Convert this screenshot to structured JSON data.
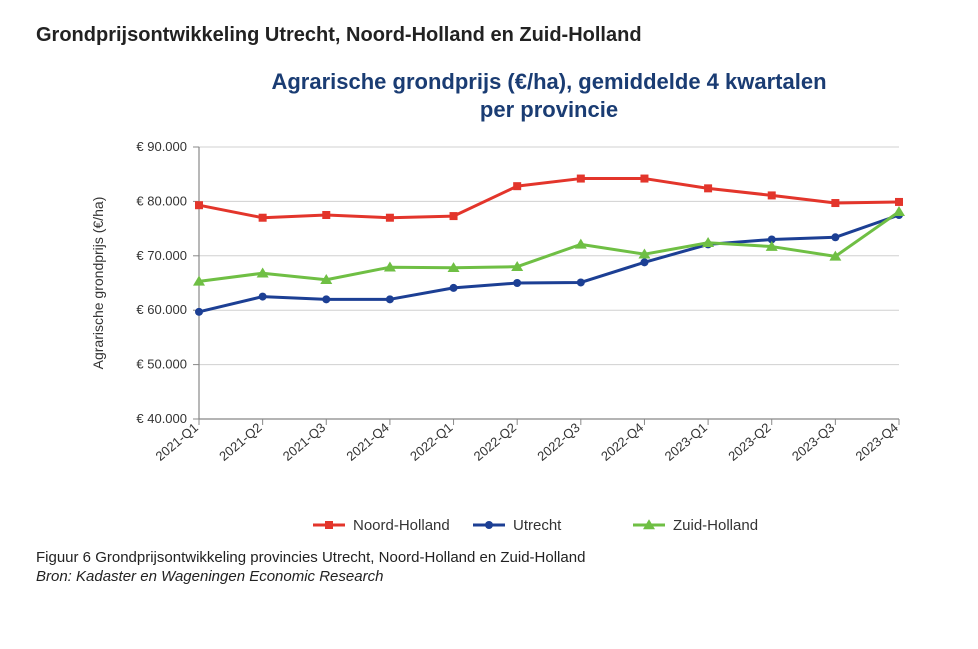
{
  "heading": "Grondprijsontwikkeling Utrecht, Noord-Holland en Zuid-Holland",
  "caption": "Figuur 6 Grondprijsontwikkeling provincies Utrecht, Noord-Holland en Zuid-Holland",
  "source": "Bron: Kadaster en Wageningen Economic Research",
  "chart": {
    "type": "line",
    "title": "Agrarische grondprijs (€/ha), gemiddelde 4 kwartalen, per provincie",
    "title_fontsize": 22,
    "title_color": "#1a3c73",
    "title_weight": "bold",
    "categories": [
      "2021-Q1",
      "2021-Q2",
      "2021-Q3",
      "2021-Q4",
      "2022-Q1",
      "2022-Q2",
      "2022-Q3",
      "2022-Q4",
      "2023-Q1",
      "2023-Q2",
      "2023-Q3",
      "2023-Q4"
    ],
    "ylabel": "Agrarische grondprijs (€/ha)",
    "ylabel_fontsize": 14,
    "ylim": [
      40000,
      90000
    ],
    "ytick_step": 10000,
    "ytick_labels": [
      "€ 40.000",
      "€ 50.000",
      "€ 60.000",
      "€ 70.000",
      "€ 80.000",
      "€ 90.000"
    ],
    "ytick_values": [
      40000,
      50000,
      60000,
      70000,
      80000,
      90000
    ],
    "series": [
      {
        "name": "Noord-Holland",
        "color": "#e3352b",
        "marker": "square",
        "marker_size": 8,
        "line_width": 3,
        "values": [
          79300,
          77000,
          77500,
          77000,
          77300,
          82800,
          84200,
          84200,
          82400,
          81100,
          79700,
          79900
        ]
      },
      {
        "name": "Utrecht",
        "color": "#1c3f94",
        "marker": "circle",
        "marker_size": 8,
        "line_width": 3,
        "values": [
          59700,
          62500,
          62000,
          62000,
          64100,
          65000,
          65100,
          68800,
          72100,
          73000,
          73400,
          77500
        ]
      },
      {
        "name": "Zuid-Holland",
        "color": "#6fbf44",
        "marker": "triangle",
        "marker_size": 10,
        "line_width": 3,
        "values": [
          65300,
          66800,
          65600,
          67900,
          67800,
          68000,
          72100,
          70300,
          72400,
          71700,
          69900,
          78100
        ]
      }
    ],
    "axis_color": "#888888",
    "grid_color": "#d0d0d0",
    "tick_color": "#888888",
    "tick_fontsize": 13,
    "xtick_rotate": -40,
    "background_color": "#ffffff",
    "legend_fontsize": 15
  }
}
